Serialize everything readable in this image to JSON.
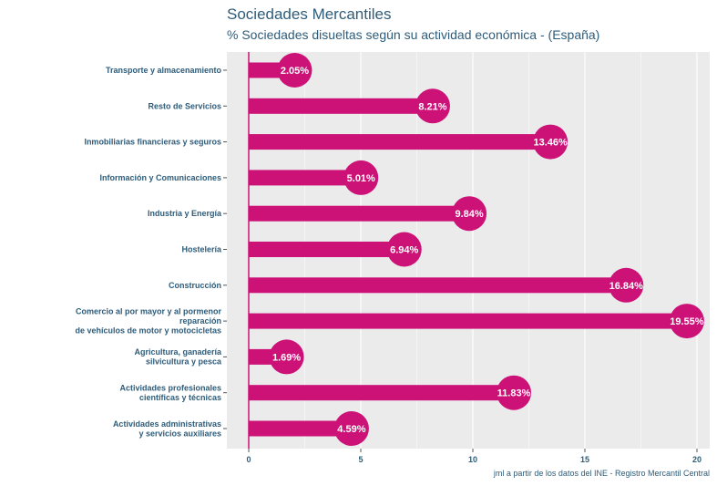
{
  "colors": {
    "accent": "#cc1177",
    "panel": "#ebebeb",
    "grid": "#ffffff",
    "text": "#2e5c7a"
  },
  "chart_data": {
    "type": "bar",
    "orientation": "horizontal",
    "title": "Sociedades Mercantiles",
    "subtitle": "% Sociedades disueltas según su actividad económica - (España)",
    "caption": "jml a partir de los datos del INE - Registro Mercantil Central",
    "xlabel": "",
    "ylabel": "",
    "xlim": [
      0,
      20.5
    ],
    "xticks": [
      0,
      5,
      10,
      15,
      20
    ],
    "categories": [
      "Transporte y almacenamiento",
      "Resto de Servicios",
      "Inmobiliarias financieras y seguros",
      "Información y Comunicaciones",
      "Industria y Energía",
      "Hostelería",
      "Construcción",
      "Comercio al por mayor y al pormenor\nreparación\nde vehículos de motor y motocicletas",
      "Agricultura, ganadería\nsilvicultura y pesca",
      "Actividades profesionales\ncientíficas y técnicas",
      "Actividades administrativas\ny servicios auxiliares"
    ],
    "values": [
      2.05,
      8.21,
      13.46,
      5.01,
      9.84,
      6.94,
      16.84,
      19.55,
      1.69,
      11.83,
      4.59
    ],
    "data_labels": [
      "2.05%",
      "8.21%",
      "13.46%",
      "5.01%",
      "9.84%",
      "6.94%",
      "16.84%",
      "19.55%",
      "1.69%",
      "11.83%",
      "4.59%"
    ]
  }
}
